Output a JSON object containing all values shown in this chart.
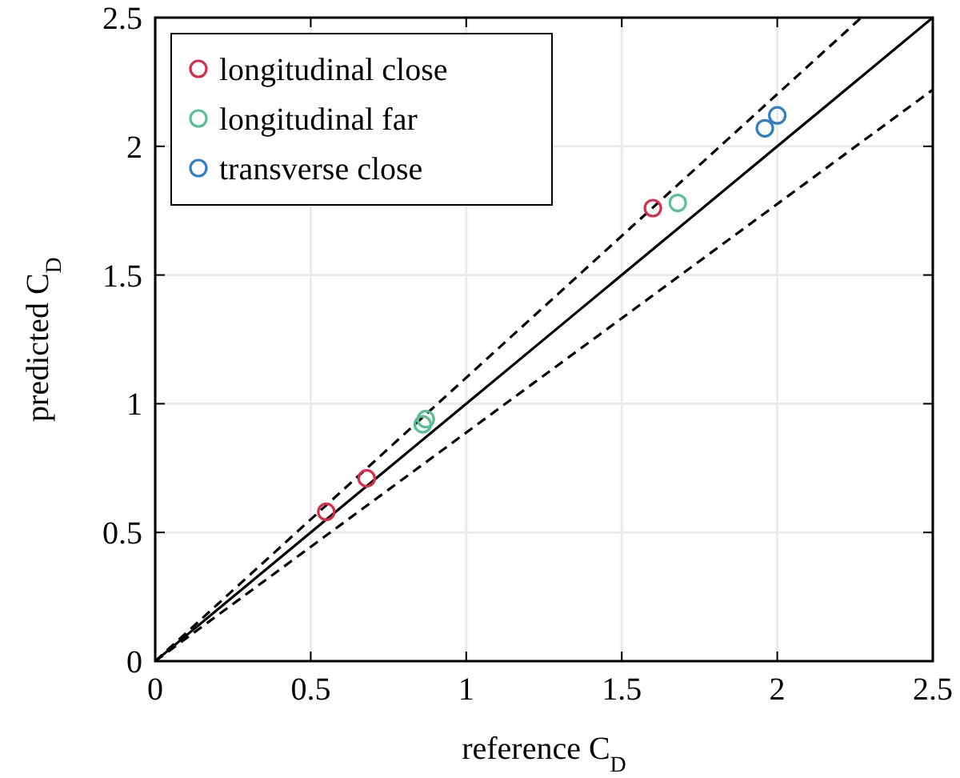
{
  "chart_data": {
    "type": "scatter",
    "xlabel": "reference C$_{D}$",
    "ylabel": "predicted C$_{D}$",
    "xlim": [
      0,
      2.5
    ],
    "ylim": [
      0,
      2.5
    ],
    "xticks": [
      0,
      0.5,
      1,
      1.5,
      2,
      2.5
    ],
    "yticks": [
      0,
      0.5,
      1,
      1.5,
      2,
      2.5
    ],
    "grid": true,
    "legend": "top left",
    "series": [
      {
        "name": "longitudinal close",
        "color": "#d62d4a",
        "marker": "circle",
        "x": [
          0.55,
          0.68,
          1.6
        ],
        "values": [
          0.58,
          0.71,
          1.76
        ]
      },
      {
        "name": "longitudinal far",
        "color": "#5bbf95",
        "marker": "circle",
        "x": [
          0.86,
          0.87,
          1.68
        ],
        "values": [
          0.92,
          0.94,
          1.78
        ]
      },
      {
        "name": "transverse close",
        "color": "#2f7fc1",
        "marker": "circle",
        "x": [
          1.96,
          2.0
        ],
        "values": [
          2.07,
          2.12
        ]
      },
      {
        "type": "line",
        "color": "#000000",
        "line_style": "solid",
        "marker": "none",
        "x": [
          0,
          2.5
        ],
        "values": [
          0,
          2.5
        ]
      },
      {
        "type": "line",
        "color": "#000000",
        "line_style": "dashed",
        "marker": "none",
        "x": [
          0,
          2.27
        ],
        "values": [
          0,
          2.5
        ]
      },
      {
        "type": "line",
        "color": "#000000",
        "line_style": "dashed",
        "marker": "none",
        "x": [
          0,
          2.5
        ],
        "values": [
          0,
          2.22
        ]
      }
    ]
  }
}
